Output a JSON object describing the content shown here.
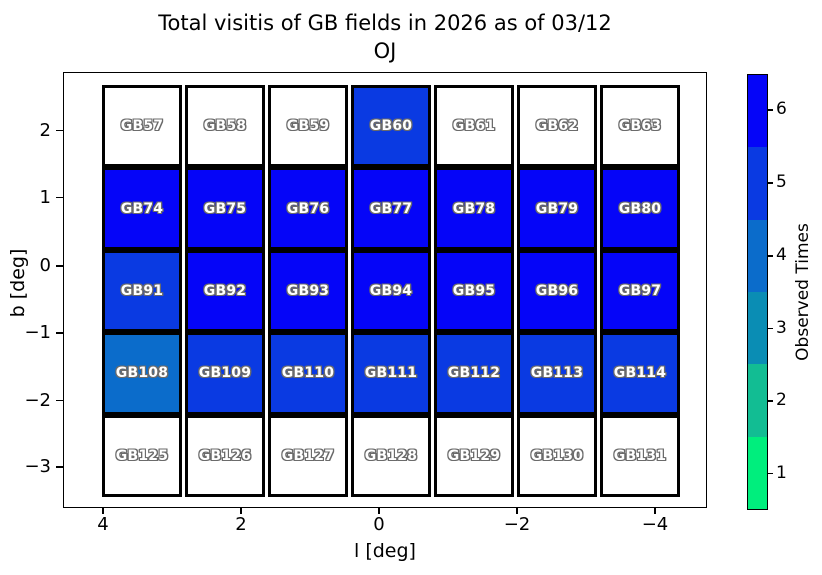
{
  "title": {
    "line1": "Total visitis of GB fields in 2026 as of 03/12",
    "line2": "OJ"
  },
  "axes": {
    "xlabel": "l [deg]",
    "ylabel": "b [deg]",
    "x_ticks": [
      "4",
      "2",
      "0",
      "−2",
      "−4"
    ],
    "y_ticks": [
      "2",
      "1",
      "0",
      "−1",
      "−2",
      "−3"
    ]
  },
  "colorbar": {
    "label": "Observed Times",
    "tick_labels_top_to_bottom": [
      "6",
      "5",
      "4",
      "3",
      "2",
      "1"
    ],
    "segment_colors_top_to_bottom": [
      "#0505F8",
      "#0A3AE2",
      "#0B6CCB",
      "#0A8DB4",
      "#12BD93",
      "#00EE7D"
    ]
  },
  "chart_data": {
    "type": "heatmap",
    "title": "Total visitis of GB fields in 2026 as of 03/12",
    "subtitle": "OJ",
    "xlabel": "l [deg]",
    "ylabel": "b [deg]",
    "x_tick_labels": [
      4,
      2,
      0,
      -2,
      -4
    ],
    "y_tick_labels": [
      2,
      1,
      0,
      -1,
      -2,
      -3
    ],
    "x_axis_reversed": true,
    "colorbar_label": "Observed Times",
    "colorbar_ticks": [
      1,
      2,
      3,
      4,
      5,
      6
    ],
    "colormap_note": "discrete 6-level green-to-blue (winter reversed); white cell = 0 visits",
    "value_color_map": {
      "0": "#FFFFFF",
      "4": "#0B6CCB",
      "5": "#0A3AE2",
      "6": "#0505F8"
    },
    "rows": [
      {
        "fields": [
          "GB57",
          "GB58",
          "GB59",
          "GB60",
          "GB61",
          "GB62",
          "GB63"
        ],
        "observed_times": [
          0,
          0,
          0,
          5,
          0,
          0,
          0
        ]
      },
      {
        "fields": [
          "GB74",
          "GB75",
          "GB76",
          "GB77",
          "GB78",
          "GB79",
          "GB80"
        ],
        "observed_times": [
          6,
          6,
          6,
          6,
          6,
          6,
          6
        ]
      },
      {
        "fields": [
          "GB91",
          "GB92",
          "GB93",
          "GB94",
          "GB95",
          "GB96",
          "GB97"
        ],
        "observed_times": [
          5,
          6,
          6,
          6,
          6,
          6,
          6
        ]
      },
      {
        "fields": [
          "GB108",
          "GB109",
          "GB110",
          "GB111",
          "GB112",
          "GB113",
          "GB114"
        ],
        "observed_times": [
          4,
          5,
          5,
          5,
          5,
          5,
          5
        ]
      },
      {
        "fields": [
          "GB125",
          "GB126",
          "GB127",
          "GB128",
          "GB129",
          "GB130",
          "GB131"
        ],
        "observed_times": [
          0,
          0,
          0,
          0,
          0,
          0,
          0
        ]
      }
    ]
  }
}
